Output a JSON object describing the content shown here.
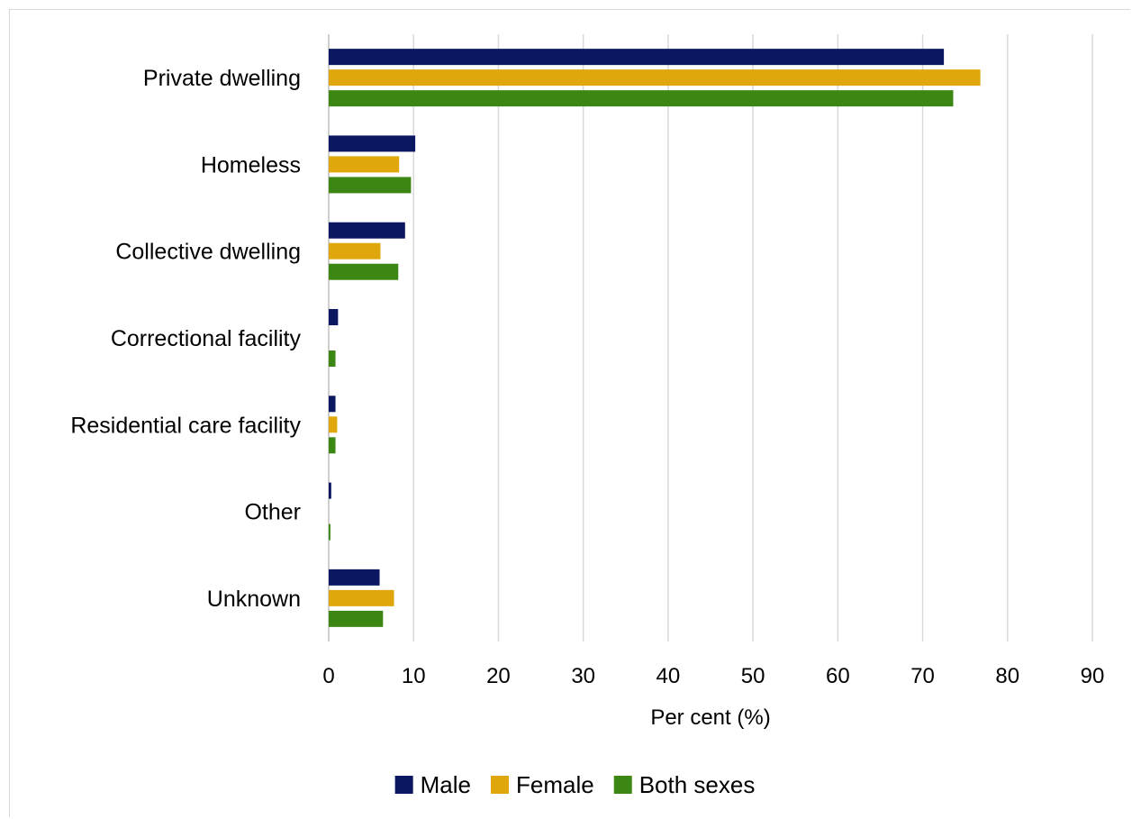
{
  "chart_data": {
    "type": "bar",
    "orientation": "horizontal",
    "categories": [
      "Private dwelling",
      "Homeless",
      "Collective dwelling",
      "Correctional facility",
      "Residential care facility",
      "Other",
      "Unknown"
    ],
    "series": [
      {
        "name": "Male",
        "color": "#0b1760",
        "values": [
          72.5,
          10.2,
          9.0,
          1.1,
          0.8,
          0.3,
          6.0
        ]
      },
      {
        "name": "Female",
        "color": "#dfa70b",
        "values": [
          76.8,
          8.3,
          6.1,
          0.0,
          1.0,
          0.0,
          7.7
        ]
      },
      {
        "name": "Both sexes",
        "color": "#3c8714",
        "values": [
          73.6,
          9.7,
          8.2,
          0.8,
          0.8,
          0.2,
          6.4
        ]
      }
    ],
    "xlabel": "Per cent (%)",
    "ylabel": "",
    "xlim": [
      0,
      90
    ],
    "xticks": [
      "0",
      "10",
      "20",
      "30",
      "40",
      "50",
      "60",
      "70",
      "80",
      "90"
    ],
    "grid": true,
    "legend_position": "bottom"
  }
}
